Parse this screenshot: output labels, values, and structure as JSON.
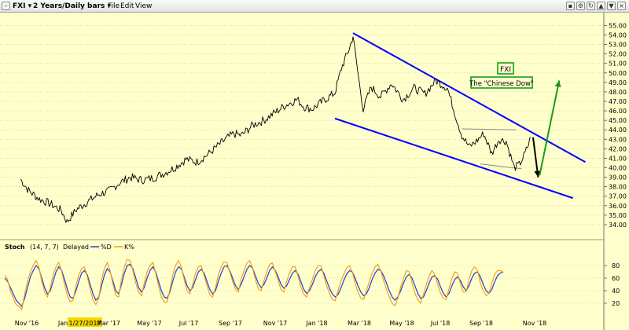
{
  "toolbar": {
    "symbol_label": "FXI",
    "period_label": "2 Years/Daily bars",
    "menu": [
      "File",
      "Edit",
      "View"
    ]
  },
  "colors": {
    "background": "#ffffcc",
    "price": "#000000",
    "channel": "#0000ff",
    "stoch_d": "#1f3fcf",
    "stoch_k": "#f39c12",
    "arrow_down": "#000000",
    "arrow_up": "#1b9a1b",
    "label_border": "#14a014"
  },
  "chart_data": [
    {
      "type": "line",
      "y_axis_side": "right",
      "ylim": [
        33.0,
        55.7
      ],
      "yticks": [
        "34.00",
        "35.00",
        "36.00",
        "37.00",
        "38.00",
        "39.00",
        "40.00",
        "41.00",
        "42.00",
        "43.00",
        "44.00",
        "45.00",
        "46.00",
        "47.00",
        "48.00",
        "49.00",
        "50.00",
        "51.00",
        "52.00",
        "53.00",
        "54.00",
        "55.00"
      ],
      "x_labels": [
        "Nov '16",
        "Jan",
        "1/27/2017",
        "Mar '17",
        "May '17",
        "Jul '17",
        "Sep '17",
        "Nov '17",
        "Jan '18",
        "Mar '18",
        "May '18",
        "Jul '18",
        "Sep '18",
        "Nov '18"
      ],
      "highlighted_date": "1/27/2017",
      "series": [
        {
          "x": [
            "2016-10-25",
            "2016-11-05",
            "2016-11-20",
            "2016-12-05",
            "2016-12-20",
            "2016-12-28",
            "2017-01-10",
            "2017-01-27",
            "2017-02-10",
            "2017-02-25",
            "2017-03-10",
            "2017-03-25",
            "2017-04-10",
            "2017-04-25",
            "2017-05-10",
            "2017-05-25",
            "2017-06-10",
            "2017-06-25",
            "2017-07-10",
            "2017-07-25",
            "2017-08-05",
            "2017-08-15",
            "2017-08-25",
            "2017-09-10",
            "2017-09-25",
            "2017-10-10",
            "2017-10-25",
            "2017-11-10",
            "2017-11-20",
            "2017-12-01",
            "2017-12-15",
            "2018-01-01",
            "2018-01-10",
            "2018-01-22",
            "2018-01-26",
            "2018-02-02",
            "2018-02-09",
            "2018-02-20",
            "2018-03-05",
            "2018-03-20",
            "2018-04-05",
            "2018-04-20",
            "2018-05-05",
            "2018-05-20",
            "2018-06-05",
            "2018-06-15",
            "2018-06-25",
            "2018-07-05",
            "2018-07-15",
            "2018-07-25",
            "2018-08-05",
            "2018-08-15",
            "2018-08-25",
            "2018-09-05",
            "2018-09-12",
            "2018-09-20",
            "2018-09-28"
          ],
          "values": [
            38.8,
            37.6,
            36.7,
            36.2,
            35.5,
            34.3,
            35.6,
            36.5,
            37.2,
            37.6,
            38.4,
            39.0,
            38.7,
            38.9,
            39.4,
            40.0,
            40.9,
            40.6,
            41.4,
            42.4,
            43.1,
            43.6,
            43.4,
            44.5,
            45.0,
            45.8,
            46.6,
            47.2,
            46.4,
            46.2,
            47.0,
            47.9,
            50.5,
            52.8,
            53.9,
            49.8,
            46.2,
            48.5,
            47.5,
            48.9,
            47.2,
            48.4,
            47.8,
            49.2,
            48.4,
            45.8,
            43.4,
            42.2,
            42.8,
            43.6,
            41.5,
            43.0,
            42.8,
            40.0,
            40.3,
            41.5,
            43.2
          ]
        }
      ],
      "annotations": [
        {
          "text": "FXI"
        },
        {
          "text": "The \"Chinese Dow\""
        }
      ],
      "trendlines": [
        {
          "name": "upper-channel",
          "from": [
            "2018-01-26",
            54.2
          ],
          "to": [
            "2018-12-12",
            40.6
          ]
        },
        {
          "name": "lower-channel",
          "from": [
            "2018-01-01",
            45.2
          ],
          "to": [
            "2018-11-25",
            36.8
          ]
        },
        {
          "name": "range-top",
          "from": [
            "2018-06-25",
            44.1
          ],
          "to": [
            "2018-09-08",
            44.0
          ]
        },
        {
          "name": "range-bottom",
          "from": [
            "2018-07-20",
            40.4
          ],
          "to": [
            "2018-09-15",
            39.9
          ]
        }
      ],
      "arrows": [
        {
          "name": "down-arrow",
          "from": [
            "2018-10-01",
            43.2
          ],
          "to": [
            "2018-10-08",
            39.0
          ]
        },
        {
          "name": "up-arrow",
          "from": [
            "2018-10-10",
            39.2
          ],
          "to": [
            "2018-11-06",
            49.2
          ]
        }
      ]
    },
    {
      "type": "line",
      "title": "Stoch",
      "params": "(14, 7, 7)",
      "mode_label": "Delayed",
      "y_axis_side": "right",
      "ylim": [
        0,
        100
      ],
      "yticks": [
        "20",
        "40",
        "60",
        "80"
      ],
      "series": [
        {
          "name": "%D",
          "values": [
            60,
            55,
            45,
            35,
            25,
            20,
            15,
            28,
            45,
            62,
            72,
            80,
            75,
            60,
            45,
            35,
            40,
            55,
            70,
            78,
            72,
            58,
            42,
            30,
            28,
            40,
            55,
            68,
            72,
            65,
            50,
            35,
            25,
            30,
            48,
            65,
            75,
            70,
            55,
            40,
            35,
            50,
            68,
            80,
            82,
            75,
            60,
            45,
            38,
            45,
            60,
            72,
            78,
            70,
            55,
            40,
            30,
            28,
            38,
            55,
            70,
            78,
            75,
            62,
            48,
            40,
            45,
            58,
            70,
            74,
            68,
            55,
            42,
            35,
            40,
            55,
            68,
            78,
            80,
            72,
            60,
            48,
            42,
            50,
            62,
            74,
            80,
            76,
            64,
            52,
            45,
            50,
            60,
            72,
            78,
            72,
            62,
            50,
            44,
            48,
            58,
            68,
            72,
            66,
            54,
            42,
            36,
            40,
            50,
            62,
            70,
            74,
            68,
            56,
            44,
            35,
            30,
            34,
            44,
            56,
            66,
            72,
            70,
            60,
            48,
            38,
            32,
            35,
            45,
            58,
            68,
            74,
            72,
            64,
            52,
            40,
            30,
            25,
            30,
            40,
            52,
            62,
            66,
            60,
            48,
            36,
            28,
            30,
            40,
            52,
            62,
            64,
            58,
            46,
            36,
            30,
            36,
            48,
            58,
            62,
            56,
            46,
            40,
            48,
            60,
            68,
            70,
            62,
            50,
            40,
            36,
            42,
            54,
            64,
            68,
            70
          ]
        },
        {
          "name": "K%",
          "values": [
            65,
            58,
            40,
            28,
            18,
            15,
            10,
            35,
            55,
            70,
            80,
            88,
            78,
            55,
            38,
            30,
            45,
            65,
            78,
            85,
            70,
            50,
            32,
            22,
            25,
            48,
            65,
            75,
            78,
            62,
            42,
            25,
            18,
            28,
            58,
            75,
            85,
            72,
            50,
            32,
            30,
            58,
            78,
            90,
            88,
            72,
            52,
            38,
            32,
            52,
            70,
            80,
            85,
            68,
            48,
            30,
            22,
            22,
            42,
            65,
            80,
            88,
            78,
            58,
            40,
            35,
            50,
            68,
            78,
            80,
            64,
            48,
            34,
            30,
            45,
            65,
            78,
            86,
            85,
            70,
            55,
            42,
            38,
            58,
            72,
            84,
            88,
            76,
            58,
            44,
            40,
            56,
            70,
            82,
            84,
            70,
            56,
            42,
            38,
            55,
            68,
            78,
            78,
            62,
            46,
            34,
            30,
            45,
            58,
            72,
            80,
            80,
            64,
            48,
            36,
            26,
            24,
            40,
            55,
            66,
            76,
            80,
            70,
            52,
            38,
            28,
            26,
            40,
            55,
            68,
            78,
            82,
            72,
            56,
            42,
            30,
            20,
            16,
            28,
            46,
            60,
            72,
            70,
            52,
            36,
            26,
            20,
            34,
            50,
            64,
            72,
            66,
            50,
            36,
            28,
            26,
            44,
            60,
            70,
            68,
            50,
            38,
            38,
            58,
            72,
            78,
            72,
            52,
            40,
            32,
            36,
            52,
            66,
            72,
            72,
            70
          ]
        }
      ]
    }
  ]
}
